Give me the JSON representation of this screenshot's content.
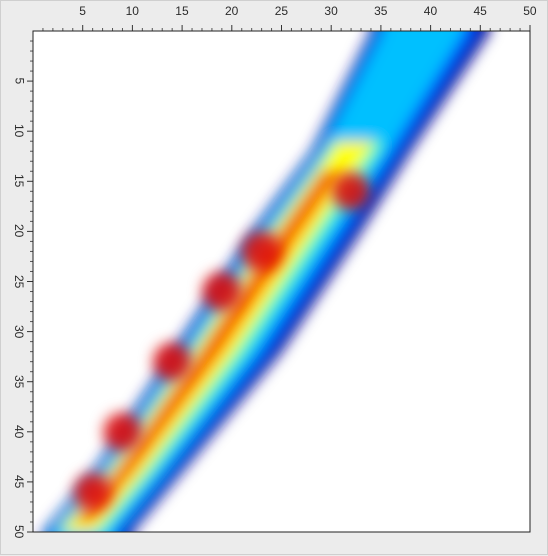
{
  "heatmap_view": {
    "x_axis": {
      "ticks": [
        "5",
        "10",
        "15",
        "20",
        "25",
        "30",
        "35",
        "40",
        "45",
        "50"
      ],
      "range": [
        0,
        50
      ]
    },
    "y_axis": {
      "ticks": [
        "5",
        "10",
        "15",
        "20",
        "25",
        "30",
        "35",
        "40",
        "45",
        "50"
      ],
      "range": [
        0,
        50
      ]
    },
    "colors": {
      "background": "#ececec",
      "plot_background": "#ffffff",
      "colormap": [
        "#00008f",
        "#0040ff",
        "#00c0ff",
        "#40ffbf",
        "#ffff00",
        "#ff7f00",
        "#dd0000"
      ]
    }
  },
  "chart_data": {
    "type": "heatmap",
    "title": "",
    "xlabel": "",
    "ylabel": "",
    "xlim": [
      0,
      50
    ],
    "ylim": [
      0,
      50
    ],
    "x_ticks": [
      5,
      10,
      15,
      20,
      25,
      30,
      35,
      40,
      45,
      50
    ],
    "y_ticks": [
      5,
      10,
      15,
      20,
      25,
      30,
      35,
      40,
      45,
      50
    ],
    "y_axis_direction": "downward",
    "grid": false,
    "band": {
      "description": "diagonal band of intensity",
      "left_edge": [
        [
          34,
          0
        ],
        [
          28,
          12
        ],
        [
          22,
          20
        ],
        [
          14,
          32
        ],
        [
          6,
          44
        ],
        [
          1,
          50
        ]
      ],
      "right_edge": [
        [
          46,
          0
        ],
        [
          38,
          12
        ],
        [
          33,
          20
        ],
        [
          25,
          32
        ],
        [
          15,
          44
        ],
        [
          10,
          50
        ]
      ],
      "hotspots": [
        {
          "x": 23,
          "y": 22,
          "level": 1.0
        },
        {
          "x": 19,
          "y": 26,
          "level": 0.95
        },
        {
          "x": 14,
          "y": 33,
          "level": 0.9
        },
        {
          "x": 9,
          "y": 40,
          "level": 0.9
        },
        {
          "x": 6,
          "y": 46,
          "level": 0.85
        },
        {
          "x": 32,
          "y": 16,
          "level": 0.9
        }
      ]
    }
  }
}
